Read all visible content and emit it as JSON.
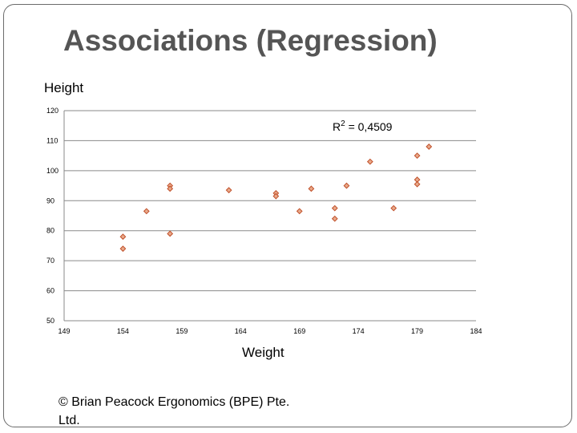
{
  "slide": {
    "title": "Associations (Regression)",
    "copyright": "© Brian Peacock Ergonomics (BPE) Pte. Ltd."
  },
  "chart_data": {
    "type": "scatter",
    "title": "",
    "xlabel": "Weight",
    "ylabel": "Height",
    "xlim": [
      149,
      184
    ],
    "ylim": [
      50,
      120
    ],
    "xticks": [
      149,
      154,
      159,
      164,
      169,
      174,
      179,
      184
    ],
    "yticks": [
      50,
      60,
      70,
      80,
      90,
      100,
      110,
      120
    ],
    "grid": "horizontal",
    "annotation": {
      "base": "R",
      "sup": "2",
      "rest": " = 0,4509"
    },
    "marker_color": "#c0502a",
    "points": [
      {
        "x": 154,
        "y": 78
      },
      {
        "x": 154,
        "y": 74
      },
      {
        "x": 156,
        "y": 86.5
      },
      {
        "x": 158,
        "y": 95
      },
      {
        "x": 158,
        "y": 94
      },
      {
        "x": 158,
        "y": 79
      },
      {
        "x": 163,
        "y": 93.5
      },
      {
        "x": 167,
        "y": 92.5
      },
      {
        "x": 167,
        "y": 91.5
      },
      {
        "x": 169,
        "y": 86.5
      },
      {
        "x": 170,
        "y": 94
      },
      {
        "x": 172,
        "y": 87.5
      },
      {
        "x": 172,
        "y": 84
      },
      {
        "x": 173,
        "y": 95
      },
      {
        "x": 175,
        "y": 103
      },
      {
        "x": 177,
        "y": 87.5
      },
      {
        "x": 179,
        "y": 105
      },
      {
        "x": 179,
        "y": 97
      },
      {
        "x": 179,
        "y": 95.5
      },
      {
        "x": 180,
        "y": 108
      }
    ]
  }
}
